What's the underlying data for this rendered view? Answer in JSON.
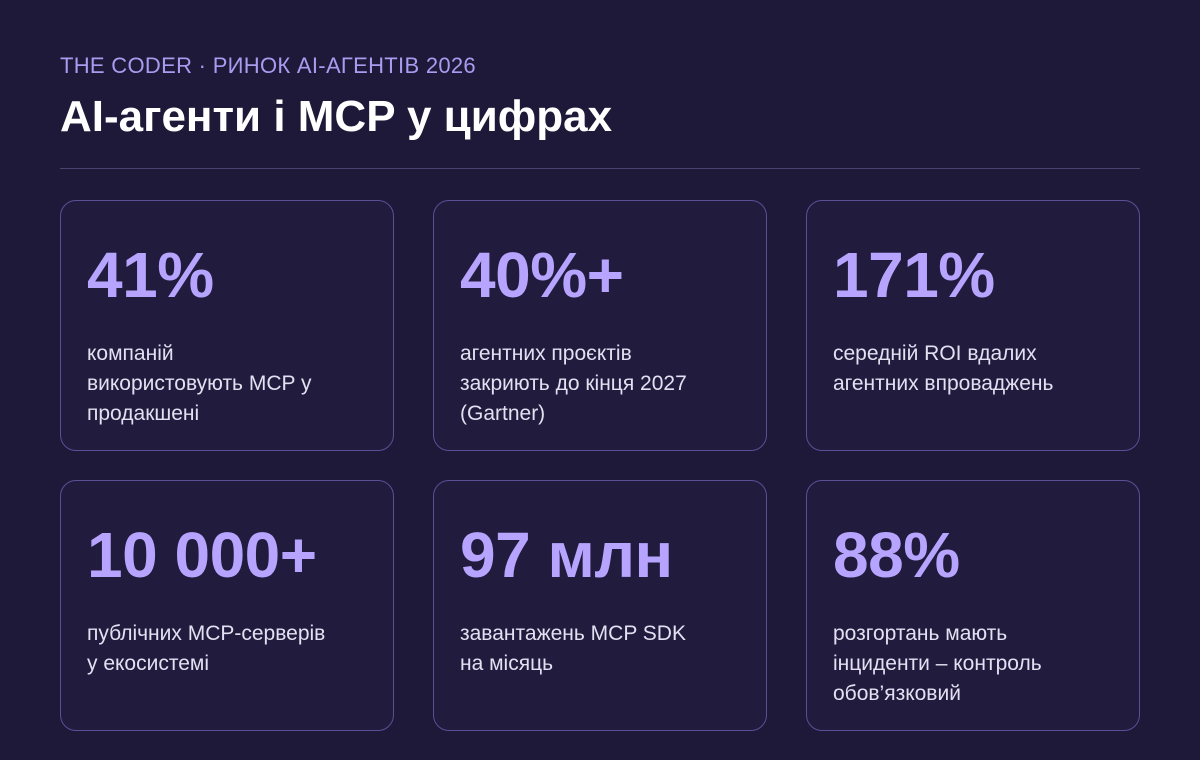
{
  "header": {
    "kicker": "THE CODER · РИНОК AI-АГЕНТІВ 2026",
    "title": "AI-агенти і MCP у цифрах"
  },
  "cards": [
    {
      "stat": "41%",
      "lines": [
        "компаній",
        "використовують MCP у",
        "продакшені"
      ]
    },
    {
      "stat": "40%+",
      "lines": [
        "агентних проєктів",
        "закриють до кінця 2027",
        "(Gartner)"
      ]
    },
    {
      "stat": "171%",
      "lines": [
        "середній ROI вдалих",
        "агентних впроваджень"
      ]
    },
    {
      "stat": "10 000+",
      "lines": [
        "публічних MCP-серверів",
        "у екосистемі"
      ]
    },
    {
      "stat": "97 млн",
      "lines": [
        "завантажень MCP SDK",
        "на місяць"
      ]
    },
    {
      "stat": "88%",
      "lines": [
        "розгортань мають",
        "інциденти – контроль",
        "обов’язковий"
      ]
    }
  ]
}
